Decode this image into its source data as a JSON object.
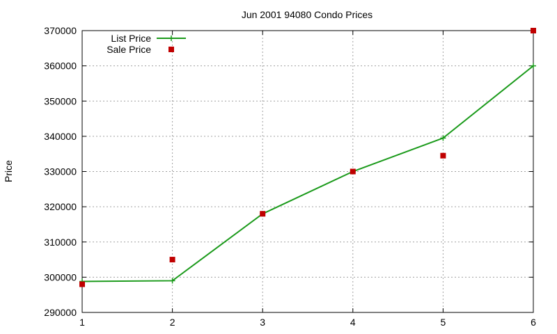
{
  "chart_data": {
    "type": "line",
    "title": "Jun 2001 94080 Condo Prices",
    "xlabel": "",
    "ylabel": "Price",
    "xlim": [
      1,
      6
    ],
    "ylim": [
      290000,
      370000
    ],
    "xticks": [
      1,
      2,
      3,
      4,
      5,
      6
    ],
    "yticks": [
      290000,
      300000,
      310000,
      320000,
      330000,
      340000,
      350000,
      360000,
      370000
    ],
    "grid": true,
    "legend_position": "top-left",
    "series": [
      {
        "name": "List Price",
        "kind": "line",
        "marker": "plus",
        "color": "#1a9a1a",
        "x": [
          1,
          2,
          3,
          4,
          5,
          6
        ],
        "y": [
          298800,
          299000,
          318000,
          330000,
          339500,
          360000
        ]
      },
      {
        "name": "Sale Price",
        "kind": "scatter",
        "marker": "square",
        "color": "#c00000",
        "x": [
          1,
          2,
          3,
          4,
          5,
          6
        ],
        "y": [
          298000,
          305000,
          318000,
          330000,
          334500,
          370000
        ]
      }
    ]
  }
}
